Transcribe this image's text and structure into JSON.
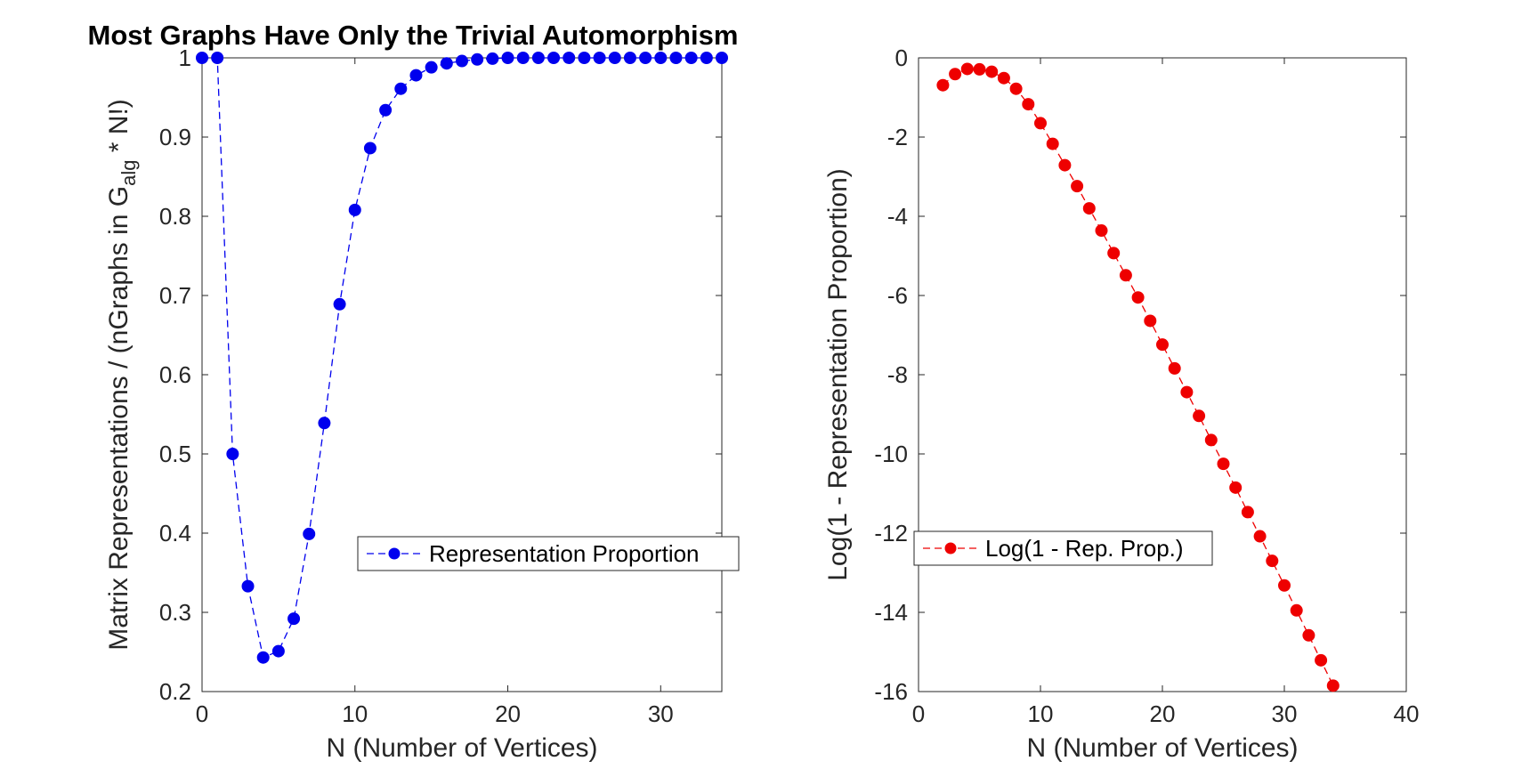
{
  "figure": {
    "title": "Most Graphs Have Only the Trivial Automorphism"
  },
  "chart_data": [
    {
      "type": "line",
      "marker": "circle",
      "line_style": "dashed",
      "xlabel": "N (Number of Vertices)",
      "ylabel_parts": {
        "pre": "Matrix Representations / (nGraphs in G",
        "sub": "alg",
        "post": " * N!)"
      },
      "xlim": [
        0,
        34
      ],
      "ylim": [
        0.2,
        1
      ],
      "xticks": [
        0,
        10,
        20,
        30
      ],
      "yticks": [
        0.2,
        0.3,
        0.4,
        0.5,
        0.6,
        0.7,
        0.8,
        0.9,
        1
      ],
      "ytick_labels": [
        "0.2",
        "0.3",
        "0.4",
        "0.5",
        "0.6",
        "0.7",
        "0.8",
        "0.9",
        "1"
      ],
      "legend_position": "center-right",
      "series": [
        {
          "name": "Representation Proportion",
          "color": "#0000ee",
          "x": [
            0,
            1,
            2,
            3,
            4,
            5,
            6,
            7,
            8,
            9,
            10,
            11,
            12,
            13,
            14,
            15,
            16,
            17,
            18,
            19,
            20,
            21,
            22,
            23,
            24,
            25,
            26,
            27,
            28,
            29,
            30,
            31,
            32,
            33,
            34
          ],
          "y": [
            1,
            1,
            0.5,
            0.333,
            0.243,
            0.251,
            0.292,
            0.399,
            0.539,
            0.689,
            0.808,
            0.886,
            0.934,
            0.961,
            0.978,
            0.988,
            0.993,
            0.996,
            0.998,
            0.999,
            1,
            1,
            1,
            1,
            1,
            1,
            1,
            1,
            1,
            1,
            1,
            1,
            1,
            1,
            1
          ]
        }
      ]
    },
    {
      "type": "line",
      "marker": "circle",
      "line_style": "dashed",
      "xlabel": "N (Number of Vertices)",
      "ylabel": "Log(1 - Representation Proportion)",
      "xlim": [
        0,
        40
      ],
      "ylim": [
        -16,
        0
      ],
      "xticks": [
        0,
        10,
        20,
        30,
        40
      ],
      "yticks": [
        -16,
        -14,
        -12,
        -10,
        -8,
        -6,
        -4,
        -2,
        0
      ],
      "ytick_labels": [
        "-16",
        "-14",
        "-12",
        "-10",
        "-8",
        "-6",
        "-4",
        "-2",
        "0"
      ],
      "legend_position": "lower-left",
      "series": [
        {
          "name": "Log(1 - Rep. Prop.)",
          "color": "#ee0000",
          "x": [
            2,
            3,
            4,
            5,
            6,
            7,
            8,
            9,
            10,
            11,
            12,
            13,
            14,
            15,
            16,
            17,
            18,
            19,
            20,
            21,
            22,
            23,
            24,
            25,
            26,
            27,
            28,
            29,
            30,
            31,
            32,
            33,
            34
          ],
          "y": [
            -0.69,
            -0.41,
            -0.28,
            -0.29,
            -0.35,
            -0.51,
            -0.78,
            -1.17,
            -1.65,
            -2.17,
            -2.71,
            -3.24,
            -3.8,
            -4.36,
            -4.93,
            -5.49,
            -6.05,
            -6.64,
            -7.24,
            -7.84,
            -8.44,
            -9.04,
            -9.65,
            -10.25,
            -10.85,
            -11.47,
            -12.08,
            -12.7,
            -13.32,
            -13.95,
            -14.58,
            -15.21,
            -15.85
          ]
        }
      ]
    }
  ]
}
